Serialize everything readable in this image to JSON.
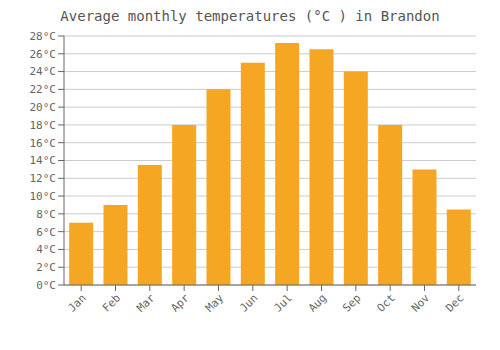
{
  "chart_data": {
    "type": "bar",
    "title": "Average monthly temperatures (°C ) in Brandon",
    "categories": [
      "Jan",
      "Feb",
      "Mar",
      "Apr",
      "May",
      "Jun",
      "Jul",
      "Aug",
      "Sep",
      "Oct",
      "Nov",
      "Dec"
    ],
    "values": [
      7.0,
      9.0,
      13.5,
      18.0,
      22.0,
      25.0,
      27.2,
      26.5,
      24.0,
      18.0,
      13.0,
      8.5
    ],
    "color": "#F5A623",
    "ylim": [
      0,
      28
    ],
    "yticks": [
      {
        "value": 0,
        "label": "0°C"
      },
      {
        "value": 2,
        "label": "2°C"
      },
      {
        "value": 4,
        "label": "4°C"
      },
      {
        "value": 6,
        "label": "6°C"
      },
      {
        "value": 8,
        "label": "8°C"
      },
      {
        "value": 10,
        "label": "10°C"
      },
      {
        "value": 12,
        "label": "12°C"
      },
      {
        "value": 14,
        "label": "14°C"
      },
      {
        "value": 16,
        "label": "16°C"
      },
      {
        "value": 18,
        "label": "18°C"
      },
      {
        "value": 20,
        "label": "20°C"
      },
      {
        "value": 22,
        "label": "22°C"
      },
      {
        "value": 24,
        "label": "24°C"
      },
      {
        "value": 26,
        "label": "26°C"
      },
      {
        "value": 28,
        "label": "28°C"
      }
    ],
    "grid": true
  }
}
